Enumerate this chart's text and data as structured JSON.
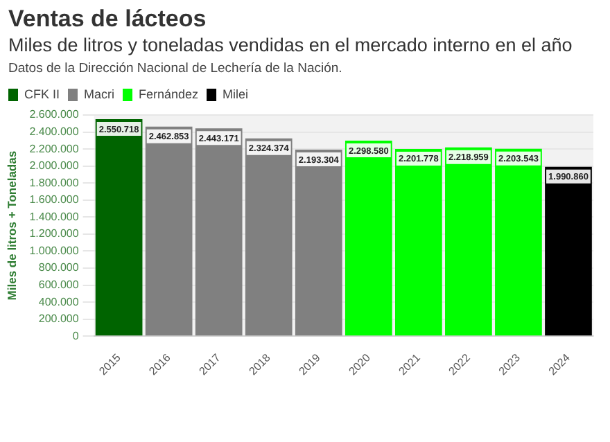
{
  "chart_data": {
    "type": "bar",
    "title": "Ventas de lácteos",
    "subtitle": "Miles de litros y toneladas vendidas en el mercado interno en el año",
    "annotations": [
      "Datos de la Dirección Nacional de Lechería de la Nación."
    ],
    "ylabel": "Miles de litros + Toneladas",
    "categories": [
      "2015",
      "2016",
      "2017",
      "2018",
      "2019",
      "2020",
      "2021",
      "2022",
      "2023",
      "2024"
    ],
    "series": [
      {
        "name": "CFK II",
        "color": "#006400",
        "values": [
          2550718,
          null,
          null,
          null,
          null,
          null,
          null,
          null,
          null,
          null
        ],
        "value_labels": [
          "2.550.718",
          null,
          null,
          null,
          null,
          null,
          null,
          null,
          null,
          null
        ]
      },
      {
        "name": "Macri",
        "color": "#808080",
        "values": [
          null,
          2462853,
          2443171,
          2324374,
          2193304,
          null,
          null,
          null,
          null,
          null
        ],
        "value_labels": [
          null,
          "2.462.853",
          "2.443.171",
          "2.324.374",
          "2.193.304",
          null,
          null,
          null,
          null,
          null
        ]
      },
      {
        "name": "Fernández",
        "color": "#00ff00",
        "values": [
          null,
          null,
          null,
          null,
          null,
          2298580,
          2201778,
          2218959,
          2203543,
          null
        ],
        "value_labels": [
          null,
          null,
          null,
          null,
          null,
          "2.298.580",
          "2.201.778",
          "2.218.959",
          "2.203.543",
          null
        ]
      },
      {
        "name": "Milei",
        "color": "#000000",
        "values": [
          null,
          null,
          null,
          null,
          null,
          null,
          null,
          null,
          null,
          1990860
        ],
        "value_labels": [
          null,
          null,
          null,
          null,
          null,
          null,
          null,
          null,
          null,
          "1.990.860"
        ]
      }
    ],
    "ylim": [
      0,
      2600000
    ],
    "yticks": [
      {
        "value": 0,
        "label": "0"
      },
      {
        "value": 200000,
        "label": "200.000"
      },
      {
        "value": 400000,
        "label": "400.000"
      },
      {
        "value": 600000,
        "label": "600.000"
      },
      {
        "value": 800000,
        "label": "800.000"
      },
      {
        "value": 1000000,
        "label": "1.000.000"
      },
      {
        "value": 1200000,
        "label": "1.200.000"
      },
      {
        "value": 1400000,
        "label": "1.400.000"
      },
      {
        "value": 1600000,
        "label": "1.600.000"
      },
      {
        "value": 1800000,
        "label": "1.800.000"
      },
      {
        "value": 2000000,
        "label": "2.000.000"
      },
      {
        "value": 2200000,
        "label": "2.200.000"
      },
      {
        "value": 2400000,
        "label": "2.400.000"
      },
      {
        "value": 2600000,
        "label": "2.600.000"
      }
    ],
    "grid": "y",
    "legend": "top left"
  }
}
